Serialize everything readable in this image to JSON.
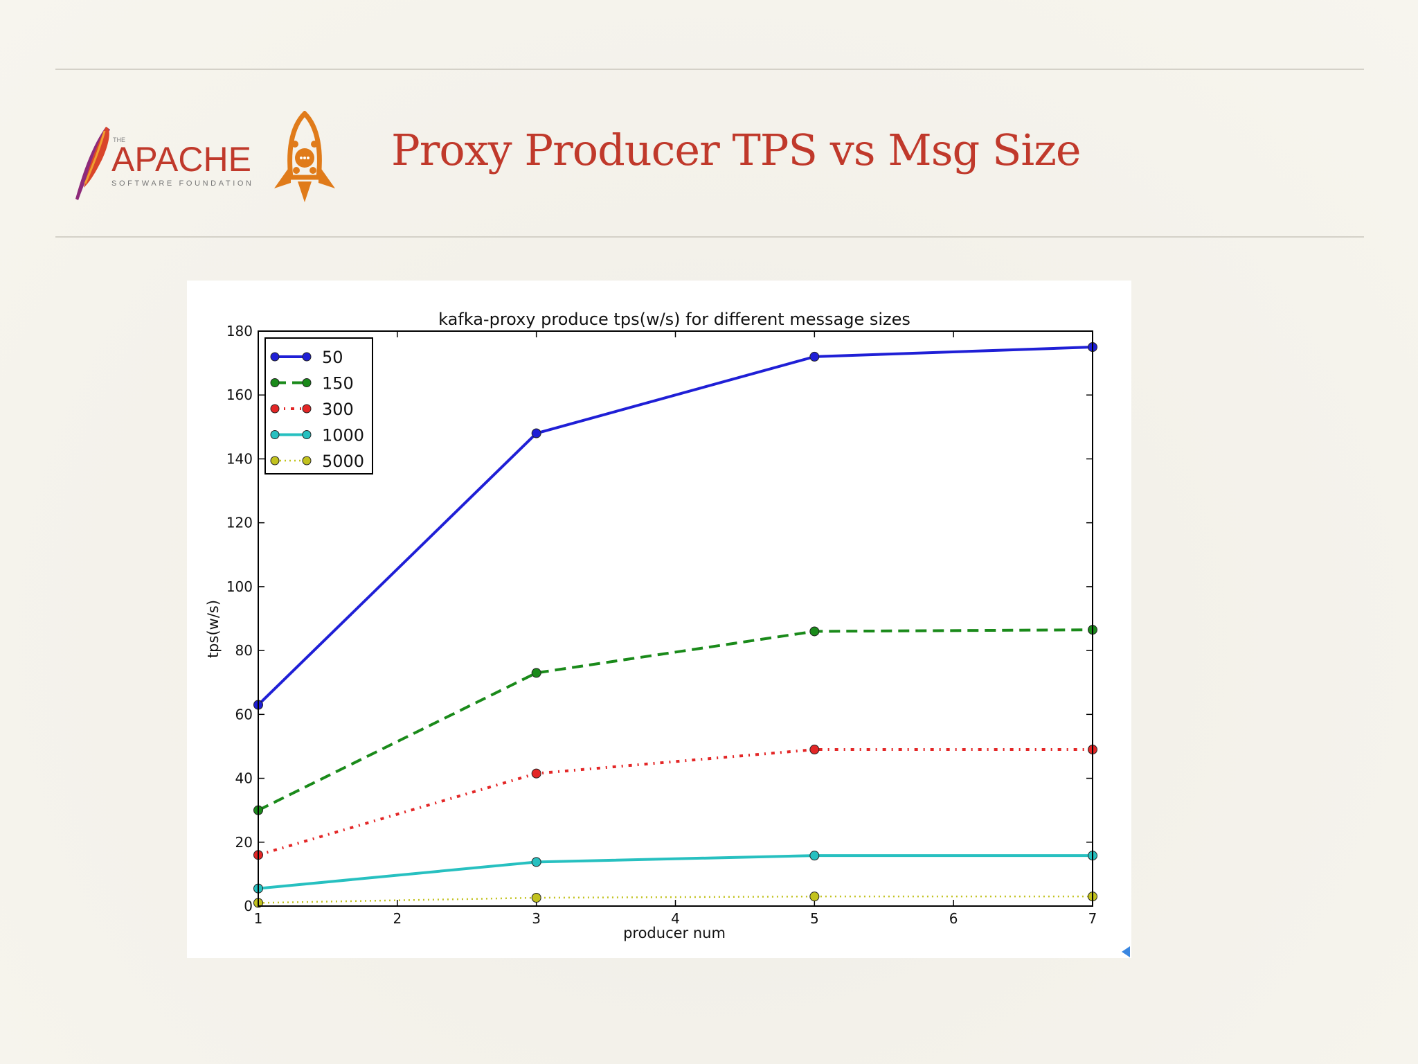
{
  "slide": {
    "title": "Proxy Producer TPS vs Msg Size",
    "title_color": "#c0392b",
    "logo_apache": {
      "top": "THE",
      "main": "APACHE",
      "sub": "SOFTWARE FOUNDATION",
      "color": "#c0392b"
    },
    "logo_rocket_icon": "rocket-logo-icon",
    "nav_icon": "arrow-left-icon"
  },
  "chart_data": {
    "type": "line",
    "title": "kafka-proxy produce tps(w/s) for different message sizes",
    "xlabel": "producer num",
    "ylabel": "tps(w/s)",
    "xlim": [
      1,
      7
    ],
    "ylim": [
      0,
      180
    ],
    "x_ticks": [
      1,
      2,
      3,
      4,
      5,
      6,
      7
    ],
    "y_ticks": [
      0,
      20,
      40,
      60,
      80,
      100,
      120,
      140,
      160,
      180
    ],
    "x": [
      1,
      3,
      5,
      7
    ],
    "legend_position": "top-left",
    "grid": false,
    "series": [
      {
        "name": "50",
        "values": [
          63,
          148,
          172,
          175
        ],
        "color": "#1f1fd6",
        "dash": "solid"
      },
      {
        "name": "150",
        "values": [
          30,
          73,
          86,
          86.5
        ],
        "color": "#1a8a1a",
        "dash": "dashed"
      },
      {
        "name": "300",
        "values": [
          16,
          41.5,
          49,
          49
        ],
        "color": "#e32626",
        "dash": "dashdot"
      },
      {
        "name": "1000",
        "values": [
          5.5,
          13.8,
          15.8,
          15.8
        ],
        "color": "#27c0c0",
        "dash": "solid"
      },
      {
        "name": "5000",
        "values": [
          1,
          2.6,
          3,
          3
        ],
        "color": "#c2c21e",
        "dash": "dotted"
      }
    ]
  }
}
